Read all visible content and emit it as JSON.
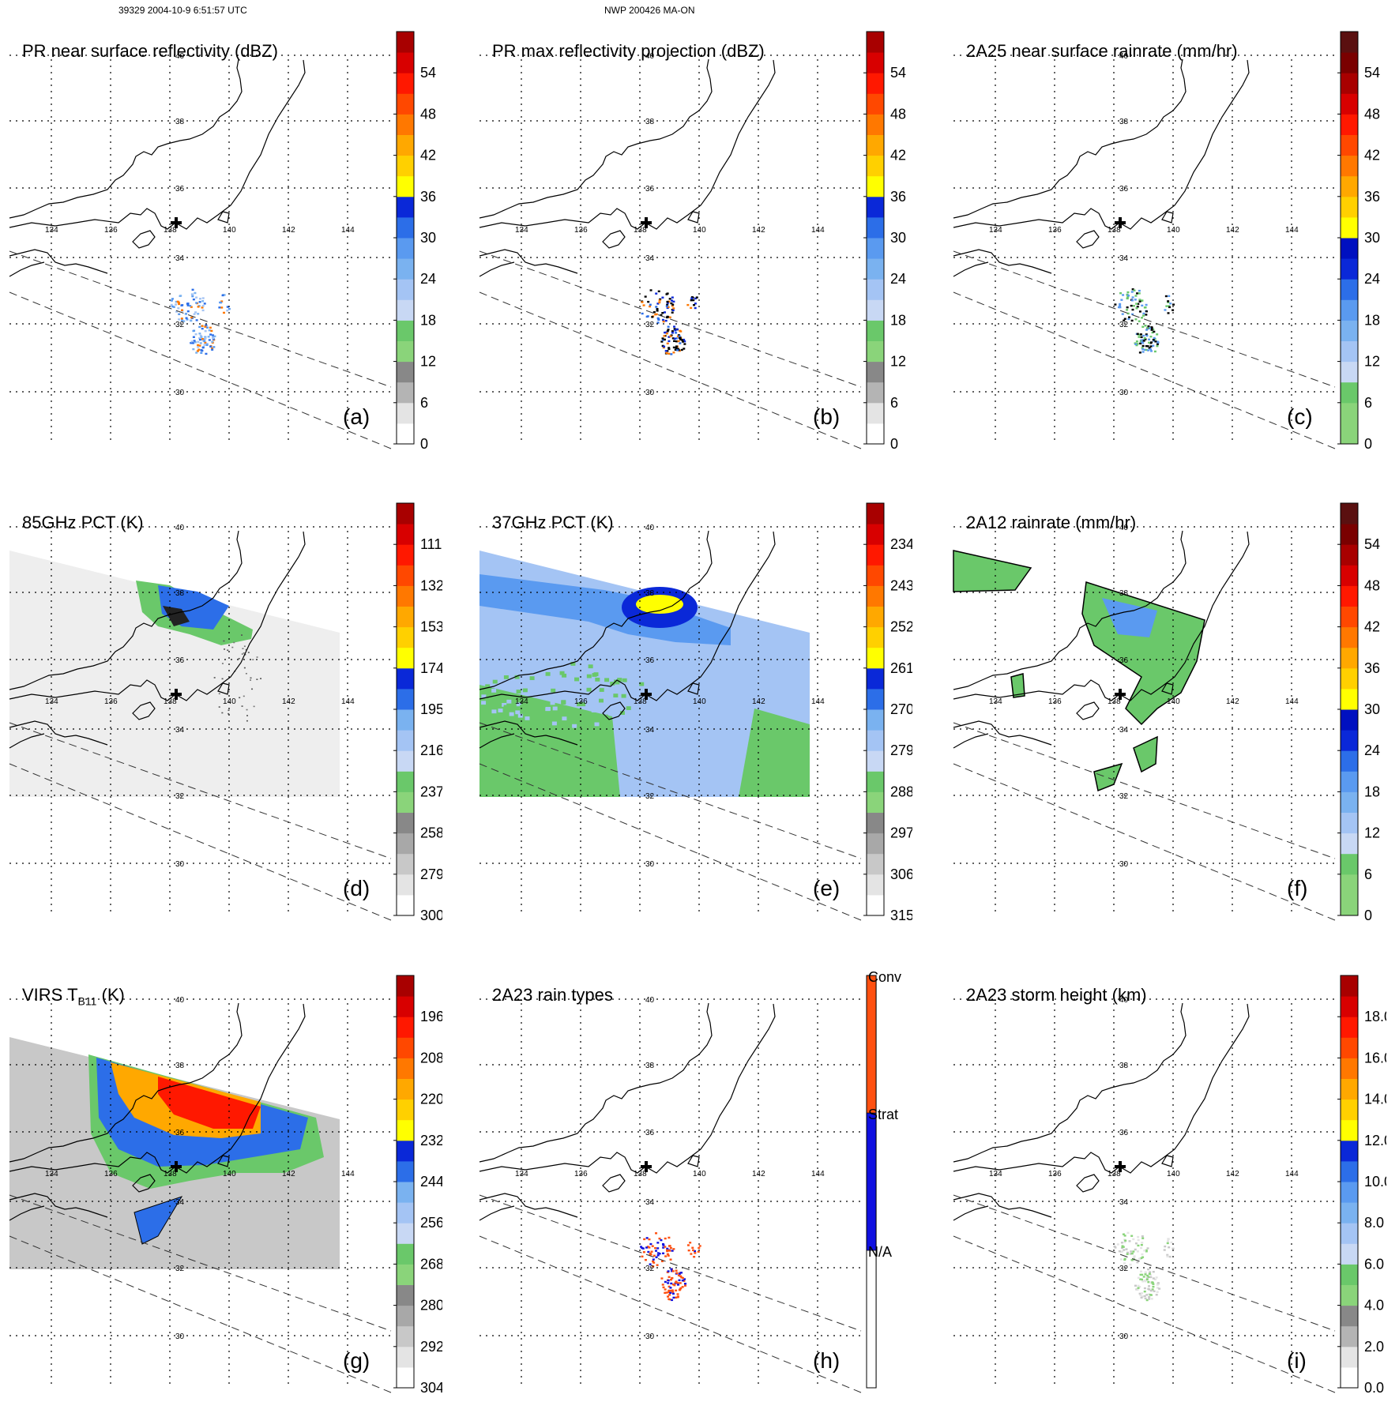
{
  "header": {
    "left": "39329 2004-10-9 6:51:57 UTC",
    "center": "NWP 200426 MA-ON"
  },
  "map": {
    "lon_labels": [
      "134",
      "136",
      "138",
      "140",
      "142",
      "144"
    ],
    "lat_labels": [
      "40",
      "38",
      "36",
      "34",
      "32",
      "30"
    ]
  },
  "chart_data": [
    {
      "type": "heatmap",
      "id": "a",
      "title": "PR near surface reflectivity (dBZ)",
      "label": "(a)",
      "colorbar_ticks": [
        "0",
        "6",
        "12",
        "18",
        "24",
        "30",
        "36",
        "42",
        "48",
        "54"
      ],
      "colorbar_range": [
        0,
        60
      ],
      "colormap": "reflectivity"
    },
    {
      "type": "heatmap",
      "id": "b",
      "title": "PR max reflectivity projection (dBZ)",
      "label": "(b)",
      "colorbar_ticks": [
        "0",
        "6",
        "12",
        "18",
        "24",
        "30",
        "36",
        "42",
        "48",
        "54"
      ],
      "colorbar_range": [
        0,
        60
      ],
      "colormap": "reflectivity"
    },
    {
      "type": "heatmap",
      "id": "c",
      "title": "2A25 near surface rainrate (mm/hr)",
      "label": "(c)",
      "colorbar_ticks": [
        "0",
        "6",
        "12",
        "18",
        "24",
        "30",
        "36",
        "42",
        "48",
        "54"
      ],
      "colorbar_range": [
        0,
        60
      ],
      "colormap": "rainrate"
    },
    {
      "type": "heatmap",
      "id": "d",
      "title": "85GHz PCT (K)",
      "label": "(d)",
      "colorbar_ticks": [
        "300",
        "279",
        "258",
        "237",
        "216",
        "195",
        "174",
        "153",
        "132",
        "111"
      ],
      "colorbar_range": [
        300,
        90
      ],
      "colormap": "pct"
    },
    {
      "type": "heatmap",
      "id": "e",
      "title": "37GHz PCT (K)",
      "label": "(e)",
      "colorbar_ticks": [
        "315",
        "306",
        "297",
        "288",
        "279",
        "270",
        "261",
        "252",
        "243",
        "234"
      ],
      "colorbar_range": [
        315,
        225
      ],
      "colormap": "pct"
    },
    {
      "type": "heatmap",
      "id": "f",
      "title": "2A12 rainrate (mm/hr)",
      "label": "(f)",
      "colorbar_ticks": [
        "0",
        "6",
        "12",
        "18",
        "24",
        "30",
        "36",
        "42",
        "48",
        "54"
      ],
      "colorbar_range": [
        0,
        60
      ],
      "colormap": "rainrate"
    },
    {
      "type": "heatmap",
      "id": "g",
      "title": "VIRS T",
      "title_sub": "B11",
      "title_suffix": " (K)",
      "label": "(g)",
      "colorbar_ticks": [
        "304",
        "292",
        "280",
        "268",
        "256",
        "244",
        "232",
        "220",
        "208",
        "196"
      ],
      "colorbar_range": [
        304,
        184
      ],
      "colormap": "pct"
    },
    {
      "type": "heatmap",
      "id": "h",
      "title": "2A23 rain types",
      "label": "(h)",
      "category_labels": [
        "N/A",
        "Strat",
        "Conv"
      ],
      "category_colors": [
        "#ffffff",
        "#1010e0",
        "#ff5010"
      ]
    },
    {
      "type": "heatmap",
      "id": "i",
      "title": "2A23 storm height (km)",
      "label": "(i)",
      "colorbar_ticks": [
        "0.0",
        "2.0",
        "4.0",
        "6.0",
        "8.0",
        "10.0",
        "12.0",
        "14.0",
        "16.0",
        "18.0"
      ],
      "colorbar_range": [
        0,
        20
      ],
      "colormap": "reflectivity"
    }
  ],
  "colormaps": {
    "reflectivity": [
      "#ffffff",
      "#e4e4e4",
      "#b4b4b4",
      "#888888",
      "#8ad47a",
      "#6ac86a",
      "#c8d8f4",
      "#a4c4f4",
      "#7ab2f0",
      "#5a9af0",
      "#2c6ee8",
      "#0a28d8",
      "#ffff00",
      "#ffd000",
      "#ffa800",
      "#ff7800",
      "#ff4800",
      "#ff1800",
      "#d80000",
      "#a80000",
      "#5a1010"
    ],
    "rainrate": [
      "#8ad47a",
      "#6ac86a",
      "#c8d8f4",
      "#a4c4f4",
      "#7ab2f0",
      "#5a9af0",
      "#2c6ee8",
      "#0a28d8",
      "#0010c0",
      "#ffff00",
      "#ffd000",
      "#ffa800",
      "#ff7800",
      "#ff4800",
      "#ff1800",
      "#d80000",
      "#a80000",
      "#7a0000",
      "#5a1010"
    ],
    "pct": [
      "#ffffff",
      "#e4e4e4",
      "#c8c8c8",
      "#a8a8a8",
      "#888888",
      "#8ad47a",
      "#6ac86a",
      "#c8d8f4",
      "#a4c4f4",
      "#7ab2f0",
      "#5a9af0",
      "#2c6ee8",
      "#0a28d8",
      "#ffff00",
      "#ffd000",
      "#ffa800",
      "#ff7800",
      "#ff4800",
      "#ff1800",
      "#d80000",
      "#a80000",
      "#5a1010"
    ]
  }
}
